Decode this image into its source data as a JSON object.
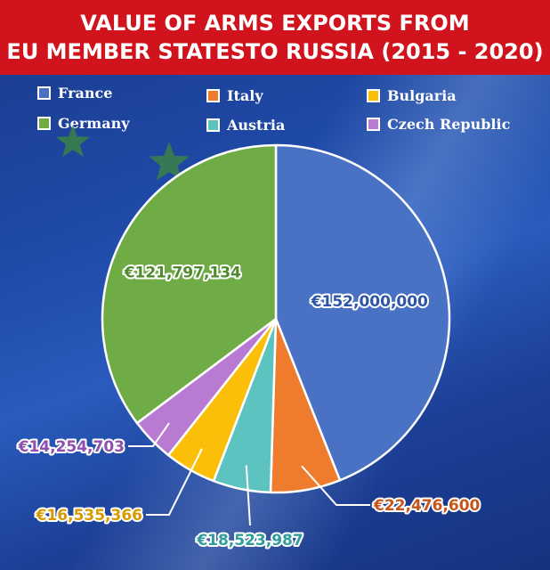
{
  "title": {
    "line1": "VALUE OF ARMS EXPORTS FROM",
    "line2": "EU MEMBER STATESTO RUSSIA (2015 - 2020)"
  },
  "legend": [
    {
      "name": "France",
      "color": "#4a72c4"
    },
    {
      "name": "Italy",
      "color": "#ef7b2d"
    },
    {
      "name": "Bulgaria",
      "color": "#fbbf0a"
    },
    {
      "name": "Germany",
      "color": "#6fac46"
    },
    {
      "name": "Austria",
      "color": "#5dc3c0"
    },
    {
      "name": "Czech Republic",
      "color": "#b97bd2"
    }
  ],
  "chart_data": {
    "type": "pie",
    "title": "VALUE OF ARMS EXPORTS FROM EU MEMBER STATESTO RUSSIA (2015 - 2020)",
    "slices": [
      {
        "name": "France",
        "value": 152000000,
        "label": "€152,000,000",
        "color": "#4a72c4",
        "label_color": "#2f55a8"
      },
      {
        "name": "Italy",
        "value": 22476600,
        "label": "€22,476,600",
        "color": "#ef7b2d",
        "label_color": "#c7551a"
      },
      {
        "name": "Austria",
        "value": 18523987,
        "label": "€18,523,987",
        "color": "#5dc3c0",
        "label_color": "#2f9e9a"
      },
      {
        "name": "Bulgaria",
        "value": 16535366,
        "label": "€16,535,366",
        "color": "#fbbf0a",
        "label_color": "#d79a00"
      },
      {
        "name": "Czech Republic",
        "value": 14254703,
        "label": "€14,254,703",
        "color": "#b97bd2",
        "label_color": "#8e4fae"
      },
      {
        "name": "Germany",
        "value": 121797134,
        "label": "€121,797,134",
        "color": "#6fac46",
        "label_color": "#4f8a2c"
      }
    ],
    "legend_position": "top"
  }
}
